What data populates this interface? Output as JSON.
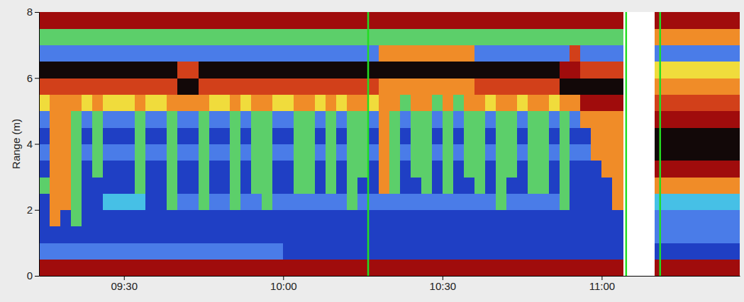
{
  "chart_data": {
    "type": "heatmap",
    "ylabel": "Range (m)",
    "xlim": [
      554,
      686
    ],
    "ylim": [
      0,
      8
    ],
    "xticks": [
      {
        "value": 570,
        "label": "09:30"
      },
      {
        "value": 600,
        "label": "10:00"
      },
      {
        "value": 630,
        "label": "10:30"
      },
      {
        "value": 660,
        "label": "11:00"
      }
    ],
    "yticks": [
      0,
      2,
      4,
      6,
      8
    ],
    "grid": false,
    "zlim": [
      0,
      9
    ],
    "vlines": [
      616,
      664.6,
      671
    ],
    "x_edges": [
      554,
      556,
      558,
      560,
      562,
      564,
      566,
      568,
      570,
      572,
      574,
      576,
      578,
      580,
      582,
      584,
      586,
      588,
      590,
      592,
      594,
      596,
      598,
      600,
      602,
      604,
      606,
      608,
      610,
      612,
      614,
      616,
      618,
      620,
      622,
      624,
      626,
      628,
      630,
      632,
      634,
      636,
      638,
      640,
      642,
      644,
      646,
      648,
      650,
      652,
      654,
      656,
      658,
      660,
      662,
      664,
      666,
      668,
      670,
      672,
      674,
      676,
      678,
      680,
      682,
      684,
      686
    ],
    "y_edges": [
      0,
      0.5,
      1,
      1.5,
      2,
      2.5,
      3,
      3.5,
      4,
      4.5,
      5,
      5.5,
      6,
      6.5,
      7,
      7.5,
      8
    ],
    "z": [
      [
        8,
        8,
        8,
        8,
        8,
        8,
        8,
        8,
        8,
        8,
        8,
        8,
        8,
        8,
        8,
        8,
        8,
        8,
        8,
        8,
        8,
        8,
        8,
        8,
        8,
        8,
        8,
        8,
        8,
        8,
        8,
        8,
        8,
        8,
        8,
        8,
        8,
        8,
        8,
        8,
        8,
        8,
        8,
        8,
        8,
        8,
        8,
        8,
        8,
        8,
        8,
        8,
        8,
        8,
        8,
        null,
        null,
        null,
        8,
        8,
        8,
        8,
        8,
        8,
        8,
        8
      ],
      [
        2,
        2,
        2,
        2,
        2,
        2,
        2,
        2,
        2,
        2,
        2,
        2,
        2,
        2,
        2,
        2,
        2,
        2,
        2,
        2,
        2,
        2,
        2,
        1,
        1,
        1,
        1,
        1,
        1,
        1,
        1,
        1,
        1,
        1,
        1,
        1,
        1,
        1,
        1,
        1,
        1,
        1,
        1,
        1,
        1,
        1,
        1,
        1,
        1,
        1,
        1,
        1,
        1,
        1,
        1,
        null,
        null,
        null,
        1,
        1,
        1,
        1,
        1,
        1,
        1,
        1
      ],
      [
        1,
        1,
        1,
        1,
        1,
        1,
        1,
        1,
        1,
        1,
        1,
        1,
        1,
        1,
        1,
        1,
        1,
        1,
        1,
        1,
        1,
        1,
        1,
        1,
        1,
        1,
        1,
        1,
        1,
        1,
        1,
        1,
        1,
        1,
        1,
        1,
        1,
        1,
        1,
        1,
        1,
        1,
        1,
        1,
        1,
        1,
        1,
        1,
        1,
        1,
        1,
        1,
        1,
        1,
        1,
        null,
        null,
        null,
        2,
        2,
        2,
        2,
        2,
        2,
        2,
        2
      ],
      [
        1,
        6,
        1,
        4,
        1,
        1,
        1,
        1,
        1,
        1,
        1,
        1,
        1,
        1,
        1,
        1,
        1,
        1,
        1,
        1,
        1,
        1,
        1,
        1,
        1,
        1,
        1,
        1,
        1,
        1,
        1,
        1,
        1,
        1,
        1,
        1,
        1,
        1,
        1,
        1,
        1,
        1,
        1,
        1,
        1,
        1,
        1,
        1,
        1,
        1,
        1,
        1,
        1,
        1,
        1,
        null,
        null,
        null,
        2,
        2,
        2,
        2,
        2,
        2,
        2,
        2
      ],
      [
        1,
        6,
        6,
        4,
        1,
        1,
        3,
        3,
        3,
        3,
        1,
        1,
        4,
        2,
        2,
        4,
        2,
        2,
        4,
        2,
        2,
        4,
        2,
        2,
        2,
        2,
        2,
        2,
        2,
        4,
        2,
        2,
        2,
        2,
        2,
        2,
        2,
        2,
        2,
        2,
        2,
        2,
        2,
        4,
        2,
        2,
        2,
        2,
        2,
        4,
        1,
        1,
        1,
        1,
        6,
        null,
        null,
        null,
        3,
        3,
        3,
        3,
        3,
        3,
        3,
        3
      ],
      [
        4,
        6,
        6,
        4,
        1,
        1,
        1,
        1,
        1,
        4,
        1,
        1,
        4,
        1,
        1,
        4,
        1,
        1,
        4,
        1,
        4,
        4,
        1,
        1,
        4,
        4,
        1,
        4,
        1,
        4,
        1,
        1,
        6,
        4,
        1,
        1,
        4,
        1,
        4,
        1,
        1,
        4,
        1,
        4,
        1,
        1,
        4,
        4,
        1,
        4,
        1,
        1,
        1,
        1,
        6,
        null,
        null,
        null,
        6,
        6,
        6,
        6,
        6,
        6,
        6,
        6
      ],
      [
        1,
        6,
        6,
        4,
        1,
        4,
        1,
        1,
        1,
        4,
        1,
        1,
        4,
        1,
        1,
        4,
        1,
        1,
        4,
        1,
        4,
        4,
        1,
        1,
        4,
        4,
        1,
        4,
        1,
        4,
        4,
        1,
        6,
        4,
        1,
        4,
        4,
        1,
        4,
        1,
        4,
        4,
        1,
        4,
        4,
        1,
        4,
        4,
        1,
        4,
        1,
        1,
        1,
        6,
        6,
        null,
        null,
        null,
        8,
        8,
        8,
        8,
        8,
        8,
        8,
        8
      ],
      [
        2,
        6,
        6,
        4,
        2,
        4,
        2,
        2,
        2,
        4,
        2,
        2,
        4,
        2,
        2,
        4,
        2,
        2,
        4,
        2,
        4,
        4,
        2,
        2,
        4,
        4,
        2,
        4,
        2,
        4,
        4,
        2,
        6,
        4,
        2,
        4,
        4,
        2,
        4,
        2,
        4,
        4,
        2,
        4,
        4,
        2,
        4,
        4,
        2,
        4,
        2,
        2,
        6,
        6,
        6,
        null,
        null,
        null,
        9,
        9,
        9,
        9,
        9,
        9,
        9,
        9
      ],
      [
        1,
        6,
        6,
        4,
        1,
        4,
        1,
        1,
        1,
        4,
        1,
        1,
        4,
        1,
        1,
        4,
        1,
        1,
        4,
        1,
        4,
        4,
        1,
        1,
        4,
        4,
        1,
        4,
        1,
        4,
        4,
        1,
        6,
        4,
        1,
        4,
        4,
        1,
        4,
        1,
        4,
        4,
        1,
        4,
        4,
        1,
        4,
        4,
        1,
        4,
        1,
        1,
        6,
        6,
        6,
        null,
        null,
        null,
        9,
        9,
        9,
        9,
        9,
        9,
        9,
        9
      ],
      [
        2,
        6,
        6,
        4,
        2,
        4,
        2,
        2,
        2,
        4,
        2,
        2,
        4,
        2,
        2,
        4,
        2,
        2,
        4,
        2,
        4,
        4,
        2,
        2,
        4,
        4,
        2,
        4,
        2,
        4,
        4,
        2,
        6,
        4,
        2,
        4,
        4,
        2,
        4,
        2,
        4,
        4,
        2,
        4,
        4,
        2,
        4,
        4,
        2,
        4,
        2,
        6,
        6,
        6,
        6,
        null,
        null,
        null,
        8,
        8,
        8,
        8,
        8,
        8,
        8,
        8
      ],
      [
        5,
        6,
        6,
        6,
        5,
        6,
        5,
        5,
        5,
        6,
        5,
        5,
        6,
        6,
        6,
        6,
        5,
        5,
        6,
        5,
        6,
        6,
        5,
        5,
        6,
        6,
        5,
        6,
        5,
        6,
        6,
        5,
        6,
        6,
        4,
        6,
        6,
        4,
        6,
        4,
        6,
        6,
        5,
        6,
        6,
        5,
        6,
        6,
        5,
        6,
        6,
        8,
        8,
        8,
        8,
        null,
        null,
        null,
        7,
        7,
        7,
        7,
        7,
        7,
        7,
        7
      ],
      [
        7,
        7,
        7,
        7,
        7,
        7,
        7,
        7,
        7,
        7,
        7,
        7,
        7,
        9,
        9,
        7,
        7,
        7,
        7,
        7,
        7,
        7,
        7,
        7,
        7,
        7,
        7,
        7,
        7,
        7,
        7,
        7,
        6,
        6,
        6,
        6,
        6,
        6,
        6,
        6,
        6,
        7,
        7,
        7,
        7,
        7,
        7,
        7,
        7,
        9,
        9,
        9,
        9,
        9,
        9,
        null,
        null,
        null,
        6,
        6,
        6,
        6,
        6,
        6,
        6,
        6
      ],
      [
        9,
        9,
        9,
        9,
        9,
        9,
        9,
        9,
        9,
        9,
        9,
        9,
        9,
        7,
        7,
        9,
        9,
        9,
        9,
        9,
        9,
        9,
        9,
        9,
        9,
        9,
        9,
        9,
        9,
        9,
        9,
        9,
        9,
        9,
        9,
        9,
        9,
        9,
        9,
        9,
        9,
        9,
        9,
        9,
        9,
        9,
        9,
        9,
        9,
        8,
        8,
        7,
        7,
        7,
        7,
        null,
        null,
        null,
        5,
        5,
        5,
        5,
        5,
        5,
        5,
        5
      ],
      [
        2,
        2,
        2,
        2,
        2,
        2,
        2,
        2,
        2,
        2,
        2,
        2,
        2,
        2,
        2,
        2,
        2,
        2,
        2,
        2,
        2,
        2,
        2,
        2,
        2,
        2,
        2,
        2,
        2,
        2,
        2,
        2,
        6,
        6,
        6,
        6,
        6,
        6,
        6,
        6,
        6,
        2,
        2,
        2,
        2,
        2,
        2,
        2,
        2,
        2,
        7,
        2,
        2,
        2,
        2,
        null,
        null,
        null,
        2,
        2,
        2,
        2,
        2,
        2,
        2,
        2
      ],
      [
        4,
        4,
        4,
        4,
        4,
        4,
        4,
        4,
        4,
        4,
        4,
        4,
        4,
        4,
        4,
        4,
        4,
        4,
        4,
        4,
        4,
        4,
        4,
        4,
        4,
        4,
        4,
        4,
        4,
        4,
        4,
        4,
        4,
        4,
        4,
        4,
        4,
        4,
        4,
        4,
        4,
        4,
        4,
        4,
        4,
        4,
        4,
        4,
        4,
        4,
        4,
        4,
        4,
        4,
        4,
        null,
        null,
        null,
        6,
        6,
        6,
        6,
        6,
        6,
        6,
        6
      ],
      [
        8,
        8,
        8,
        8,
        8,
        8,
        8,
        8,
        8,
        8,
        8,
        8,
        8,
        8,
        8,
        8,
        8,
        8,
        8,
        8,
        8,
        8,
        8,
        8,
        8,
        8,
        8,
        8,
        8,
        8,
        8,
        8,
        8,
        8,
        8,
        8,
        8,
        8,
        8,
        8,
        8,
        8,
        8,
        8,
        8,
        8,
        8,
        8,
        8,
        8,
        8,
        8,
        8,
        8,
        8,
        null,
        null,
        null,
        8,
        8,
        8,
        8,
        8,
        8,
        8,
        8
      ]
    ]
  }
}
